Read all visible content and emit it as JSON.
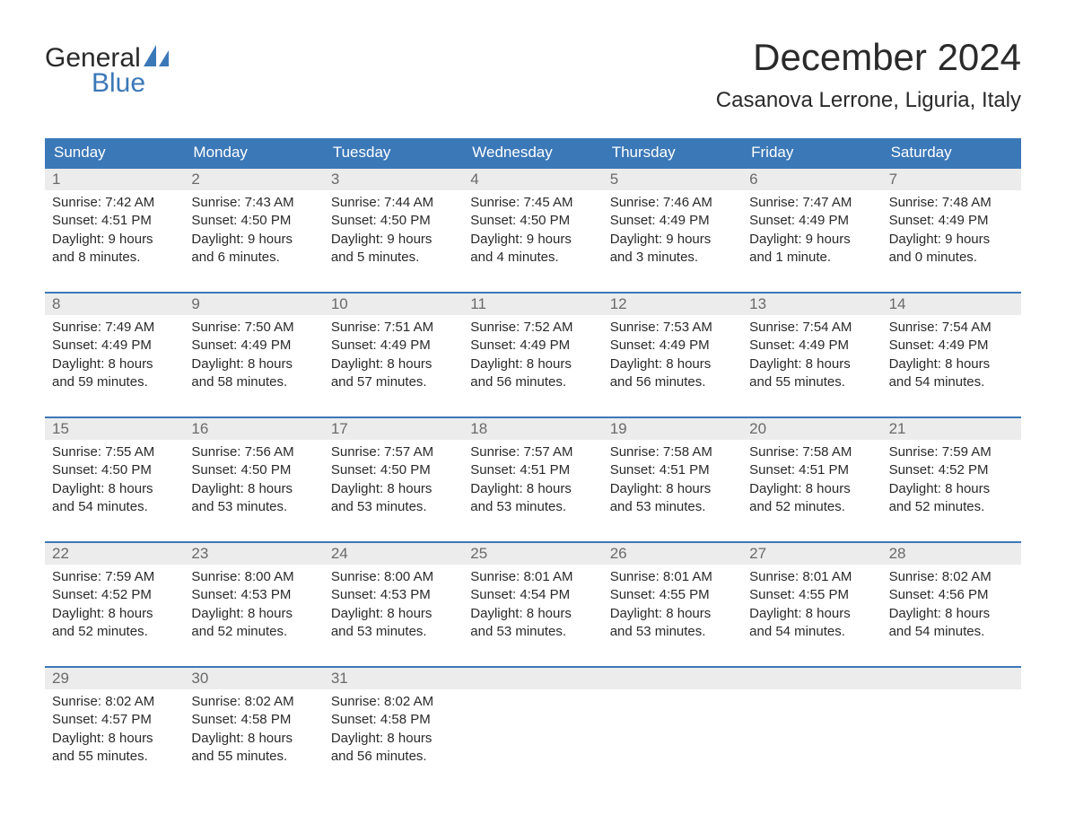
{
  "logo": {
    "word1": "General",
    "word2": "Blue",
    "sail_color": "#3b78b8",
    "word1_color": "#2a2a2a",
    "word2_color": "#3b78b8"
  },
  "title": "December 2024",
  "location": "Casanova Lerrone, Liguria, Italy",
  "colors": {
    "header_bg": "#3b78b8",
    "header_text": "#ffffff",
    "daynum_bg": "#ececec",
    "daynum_text": "#6a6a6a",
    "body_text": "#2a2a2a",
    "week_border": "#3b78b8",
    "page_bg": "#ffffff"
  },
  "typography": {
    "title_fontsize": 42,
    "location_fontsize": 24,
    "dayname_fontsize": 17,
    "daynum_fontsize": 17,
    "cell_fontsize": 15
  },
  "day_names": [
    "Sunday",
    "Monday",
    "Tuesday",
    "Wednesday",
    "Thursday",
    "Friday",
    "Saturday"
  ],
  "weeks": [
    [
      {
        "num": "1",
        "sunrise": "Sunrise: 7:42 AM",
        "sunset": "Sunset: 4:51 PM",
        "day1": "Daylight: 9 hours",
        "day2": "and 8 minutes."
      },
      {
        "num": "2",
        "sunrise": "Sunrise: 7:43 AM",
        "sunset": "Sunset: 4:50 PM",
        "day1": "Daylight: 9 hours",
        "day2": "and 6 minutes."
      },
      {
        "num": "3",
        "sunrise": "Sunrise: 7:44 AM",
        "sunset": "Sunset: 4:50 PM",
        "day1": "Daylight: 9 hours",
        "day2": "and 5 minutes."
      },
      {
        "num": "4",
        "sunrise": "Sunrise: 7:45 AM",
        "sunset": "Sunset: 4:50 PM",
        "day1": "Daylight: 9 hours",
        "day2": "and 4 minutes."
      },
      {
        "num": "5",
        "sunrise": "Sunrise: 7:46 AM",
        "sunset": "Sunset: 4:49 PM",
        "day1": "Daylight: 9 hours",
        "day2": "and 3 minutes."
      },
      {
        "num": "6",
        "sunrise": "Sunrise: 7:47 AM",
        "sunset": "Sunset: 4:49 PM",
        "day1": "Daylight: 9 hours",
        "day2": "and 1 minute."
      },
      {
        "num": "7",
        "sunrise": "Sunrise: 7:48 AM",
        "sunset": "Sunset: 4:49 PM",
        "day1": "Daylight: 9 hours",
        "day2": "and 0 minutes."
      }
    ],
    [
      {
        "num": "8",
        "sunrise": "Sunrise: 7:49 AM",
        "sunset": "Sunset: 4:49 PM",
        "day1": "Daylight: 8 hours",
        "day2": "and 59 minutes."
      },
      {
        "num": "9",
        "sunrise": "Sunrise: 7:50 AM",
        "sunset": "Sunset: 4:49 PM",
        "day1": "Daylight: 8 hours",
        "day2": "and 58 minutes."
      },
      {
        "num": "10",
        "sunrise": "Sunrise: 7:51 AM",
        "sunset": "Sunset: 4:49 PM",
        "day1": "Daylight: 8 hours",
        "day2": "and 57 minutes."
      },
      {
        "num": "11",
        "sunrise": "Sunrise: 7:52 AM",
        "sunset": "Sunset: 4:49 PM",
        "day1": "Daylight: 8 hours",
        "day2": "and 56 minutes."
      },
      {
        "num": "12",
        "sunrise": "Sunrise: 7:53 AM",
        "sunset": "Sunset: 4:49 PM",
        "day1": "Daylight: 8 hours",
        "day2": "and 56 minutes."
      },
      {
        "num": "13",
        "sunrise": "Sunrise: 7:54 AM",
        "sunset": "Sunset: 4:49 PM",
        "day1": "Daylight: 8 hours",
        "day2": "and 55 minutes."
      },
      {
        "num": "14",
        "sunrise": "Sunrise: 7:54 AM",
        "sunset": "Sunset: 4:49 PM",
        "day1": "Daylight: 8 hours",
        "day2": "and 54 minutes."
      }
    ],
    [
      {
        "num": "15",
        "sunrise": "Sunrise: 7:55 AM",
        "sunset": "Sunset: 4:50 PM",
        "day1": "Daylight: 8 hours",
        "day2": "and 54 minutes."
      },
      {
        "num": "16",
        "sunrise": "Sunrise: 7:56 AM",
        "sunset": "Sunset: 4:50 PM",
        "day1": "Daylight: 8 hours",
        "day2": "and 53 minutes."
      },
      {
        "num": "17",
        "sunrise": "Sunrise: 7:57 AM",
        "sunset": "Sunset: 4:50 PM",
        "day1": "Daylight: 8 hours",
        "day2": "and 53 minutes."
      },
      {
        "num": "18",
        "sunrise": "Sunrise: 7:57 AM",
        "sunset": "Sunset: 4:51 PM",
        "day1": "Daylight: 8 hours",
        "day2": "and 53 minutes."
      },
      {
        "num": "19",
        "sunrise": "Sunrise: 7:58 AM",
        "sunset": "Sunset: 4:51 PM",
        "day1": "Daylight: 8 hours",
        "day2": "and 53 minutes."
      },
      {
        "num": "20",
        "sunrise": "Sunrise: 7:58 AM",
        "sunset": "Sunset: 4:51 PM",
        "day1": "Daylight: 8 hours",
        "day2": "and 52 minutes."
      },
      {
        "num": "21",
        "sunrise": "Sunrise: 7:59 AM",
        "sunset": "Sunset: 4:52 PM",
        "day1": "Daylight: 8 hours",
        "day2": "and 52 minutes."
      }
    ],
    [
      {
        "num": "22",
        "sunrise": "Sunrise: 7:59 AM",
        "sunset": "Sunset: 4:52 PM",
        "day1": "Daylight: 8 hours",
        "day2": "and 52 minutes."
      },
      {
        "num": "23",
        "sunrise": "Sunrise: 8:00 AM",
        "sunset": "Sunset: 4:53 PM",
        "day1": "Daylight: 8 hours",
        "day2": "and 52 minutes."
      },
      {
        "num": "24",
        "sunrise": "Sunrise: 8:00 AM",
        "sunset": "Sunset: 4:53 PM",
        "day1": "Daylight: 8 hours",
        "day2": "and 53 minutes."
      },
      {
        "num": "25",
        "sunrise": "Sunrise: 8:01 AM",
        "sunset": "Sunset: 4:54 PM",
        "day1": "Daylight: 8 hours",
        "day2": "and 53 minutes."
      },
      {
        "num": "26",
        "sunrise": "Sunrise: 8:01 AM",
        "sunset": "Sunset: 4:55 PM",
        "day1": "Daylight: 8 hours",
        "day2": "and 53 minutes."
      },
      {
        "num": "27",
        "sunrise": "Sunrise: 8:01 AM",
        "sunset": "Sunset: 4:55 PM",
        "day1": "Daylight: 8 hours",
        "day2": "and 54 minutes."
      },
      {
        "num": "28",
        "sunrise": "Sunrise: 8:02 AM",
        "sunset": "Sunset: 4:56 PM",
        "day1": "Daylight: 8 hours",
        "day2": "and 54 minutes."
      }
    ],
    [
      {
        "num": "29",
        "sunrise": "Sunrise: 8:02 AM",
        "sunset": "Sunset: 4:57 PM",
        "day1": "Daylight: 8 hours",
        "day2": "and 55 minutes."
      },
      {
        "num": "30",
        "sunrise": "Sunrise: 8:02 AM",
        "sunset": "Sunset: 4:58 PM",
        "day1": "Daylight: 8 hours",
        "day2": "and 55 minutes."
      },
      {
        "num": "31",
        "sunrise": "Sunrise: 8:02 AM",
        "sunset": "Sunset: 4:58 PM",
        "day1": "Daylight: 8 hours",
        "day2": "and 56 minutes."
      },
      null,
      null,
      null,
      null
    ]
  ]
}
